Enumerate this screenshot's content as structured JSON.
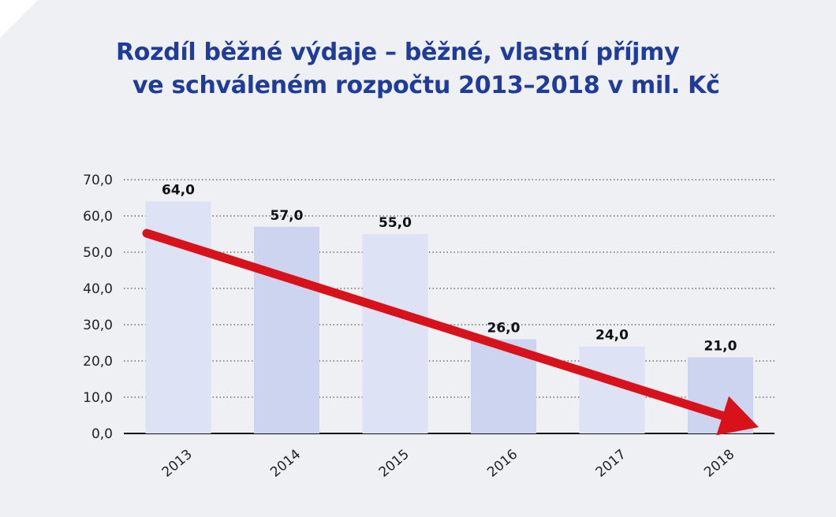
{
  "title_line1": "Rozdíl běžné výdaje – běžné, vlastní příjmy",
  "title_line2": "ve schváleném rozpočtu 2013–2018 v mil. Kč",
  "colors": {
    "title": "#1f3c99",
    "bar_light": "#dde2f5",
    "bar_dark": "#ccd4f0",
    "arrow": "#d8121a",
    "grid": "#555555",
    "background": "#eff0f3"
  },
  "chart_data": {
    "type": "bar",
    "title": "Rozdíl běžné výdaje – běžné, vlastní příjmy ve schváleném rozpočtu 2013–2018 v mil. Kč",
    "categories": [
      "2013",
      "2014",
      "2015",
      "2016",
      "2017",
      "2018"
    ],
    "values": [
      64.0,
      57.0,
      55.0,
      26.0,
      24.0,
      21.0
    ],
    "value_labels": [
      "64,0",
      "57,0",
      "55,0",
      "26,0",
      "24,0",
      "21,0"
    ],
    "y_ticks": [
      "0,0",
      "10,0",
      "20,0",
      "30,0",
      "40,0",
      "50,0",
      "60,0",
      "70,0"
    ],
    "ylim": [
      0,
      70
    ],
    "grid": true,
    "trend_arrow": {
      "from_category": "2013",
      "to_category": "2018",
      "direction": "down"
    }
  }
}
